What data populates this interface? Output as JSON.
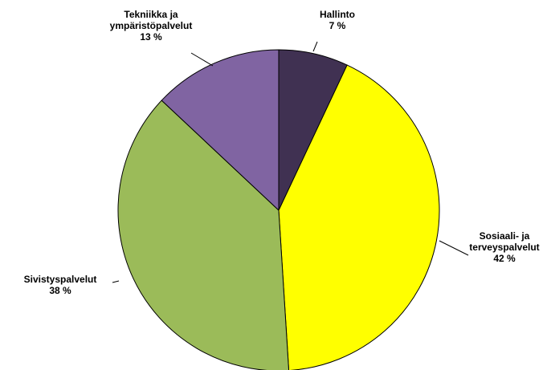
{
  "chart_data": {
    "type": "pie",
    "categories": [
      "Hallinto",
      "Sosiaali- ja\nterveyspalvelut",
      "Sivistyspalvelut",
      "Tekniikka ja\nympäristöpalvelut"
    ],
    "values": [
      7,
      42,
      38,
      13
    ],
    "value_labels": [
      "7 %",
      "42 %",
      "38 %",
      "13 %"
    ],
    "colors": [
      "#403152",
      "#ffff00",
      "#9bbb59",
      "#8064a2"
    ]
  }
}
